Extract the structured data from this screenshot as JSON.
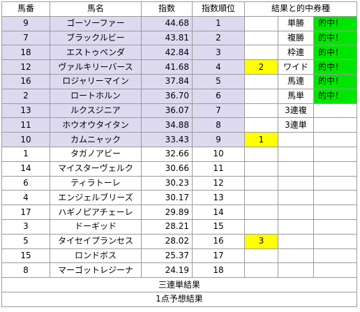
{
  "headers": [
    "馬番",
    "馬名",
    "指数",
    "指数順位",
    "結果と的中券種"
  ],
  "rows": [
    {
      "no": "9",
      "name": "ゴーソーファー",
      "score": "44.68",
      "rank": "1",
      "res": "",
      "bet": "単勝",
      "hit": "的中！"
    },
    {
      "no": "7",
      "name": "ブラックルビー",
      "score": "43.81",
      "rank": "2",
      "res": "",
      "bet": "複勝",
      "hit": "的中！"
    },
    {
      "no": "18",
      "name": "エストゥペンダ",
      "score": "42.84",
      "rank": "3",
      "res": "",
      "bet": "枠連",
      "hit": "的中！"
    },
    {
      "no": "12",
      "name": "ヴァルキリーバース",
      "score": "41.68",
      "rank": "4",
      "res": "2",
      "bet": "ワイド",
      "hit": "的中！"
    },
    {
      "no": "16",
      "name": "ロジャリーマイン",
      "score": "37.84",
      "rank": "5",
      "res": "",
      "bet": "馬連",
      "hit": "的中！"
    },
    {
      "no": "2",
      "name": "ロートホルン",
      "score": "36.70",
      "rank": "6",
      "res": "",
      "bet": "馬単",
      "hit": "的中！"
    },
    {
      "no": "13",
      "name": "ルクスジニア",
      "score": "36.07",
      "rank": "7",
      "res": "",
      "bet": "3連複",
      "hit": ""
    },
    {
      "no": "11",
      "name": "ホウオウタイタン",
      "score": "34.88",
      "rank": "8",
      "res": "",
      "bet": "3連単",
      "hit": ""
    },
    {
      "no": "10",
      "name": "カムニャック",
      "score": "33.43",
      "rank": "9",
      "res": "1",
      "bet": "",
      "hit": ""
    },
    {
      "no": "1",
      "name": "タガノアビー",
      "score": "32.66",
      "rank": "10",
      "res": "",
      "bet": "",
      "hit": ""
    },
    {
      "no": "14",
      "name": "マイスターヴェルク",
      "score": "30.66",
      "rank": "11",
      "res": "",
      "bet": "",
      "hit": ""
    },
    {
      "no": "6",
      "name": "ティラトーレ",
      "score": "30.23",
      "rank": "12",
      "res": "",
      "bet": "",
      "hit": ""
    },
    {
      "no": "4",
      "name": "エンジェルブリーズ",
      "score": "30.17",
      "rank": "13",
      "res": "",
      "bet": "",
      "hit": ""
    },
    {
      "no": "17",
      "name": "ハギノピアチェーレ",
      "score": "29.89",
      "rank": "14",
      "res": "",
      "bet": "",
      "hit": ""
    },
    {
      "no": "3",
      "name": "ドーギッド",
      "score": "28.21",
      "rank": "15",
      "res": "",
      "bet": "",
      "hit": ""
    },
    {
      "no": "5",
      "name": "タイセイプランセス",
      "score": "28.02",
      "rank": "16",
      "res": "3",
      "bet": "",
      "hit": ""
    },
    {
      "no": "15",
      "name": "ロンドボス",
      "score": "25.37",
      "rank": "17",
      "res": "",
      "bet": "",
      "hit": ""
    },
    {
      "no": "8",
      "name": "マーゴットレジーナ",
      "score": "24.19",
      "rank": "18",
      "res": "",
      "bet": "",
      "hit": ""
    }
  ],
  "footer": [
    "三連単結果",
    "1点予想結果"
  ],
  "colors": {
    "highlight": "#dddaf0",
    "orange": "#ff9a1a",
    "yellow": "#ffff00",
    "green": "#00e600"
  }
}
